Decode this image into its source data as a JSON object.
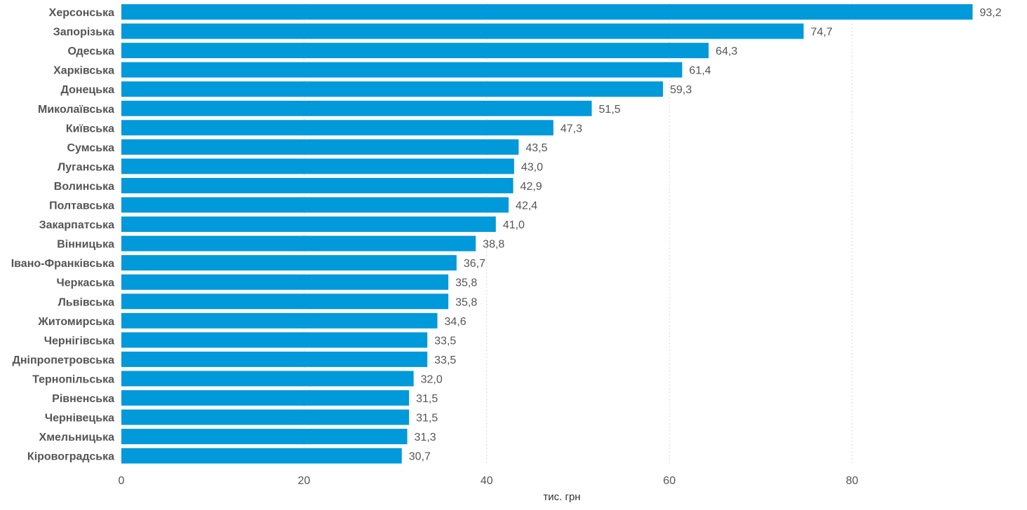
{
  "chart_data": {
    "type": "bar",
    "orientation": "horizontal",
    "categories": [
      "Херсонська",
      "Запорізька",
      "Одеська",
      "Харківська",
      "Донецька",
      "Миколаївська",
      "Київська",
      "Сумська",
      "Луганська",
      "Волинська",
      "Полтавська",
      "Закарпатська",
      "Вінницька",
      "Івано-Франківська",
      "Черкаська",
      "Львівська",
      "Житомирська",
      "Чернігівська",
      "Дніпропетровська",
      "Тернопільська",
      "Рівненська",
      "Чернівецька",
      "Хмельницька",
      "Кіровоградська"
    ],
    "values": [
      93.2,
      74.7,
      64.3,
      61.4,
      59.3,
      51.5,
      47.3,
      43.5,
      43.0,
      42.9,
      42.4,
      41.0,
      38.8,
      36.7,
      35.8,
      35.8,
      34.6,
      33.5,
      33.5,
      32.0,
      31.5,
      31.5,
      31.3,
      30.7
    ],
    "value_labels": [
      "93,2",
      "74,7",
      "64,3",
      "61,4",
      "59,3",
      "51,5",
      "47,3",
      "43,5",
      "43,0",
      "42,9",
      "42,4",
      "41,0",
      "38,8",
      "36,7",
      "35,8",
      "35,8",
      "34,6",
      "33,5",
      "33,5",
      "32,0",
      "31,5",
      "31,5",
      "31,3",
      "30,7"
    ],
    "xlabel": "тис. грн",
    "xticks": [
      0,
      20,
      40,
      60,
      80
    ],
    "xtick_labels": [
      "0",
      "20",
      "40",
      "60",
      "80"
    ],
    "xlim": [
      0,
      100
    ],
    "grid": true,
    "bar_color": "#0099da"
  }
}
